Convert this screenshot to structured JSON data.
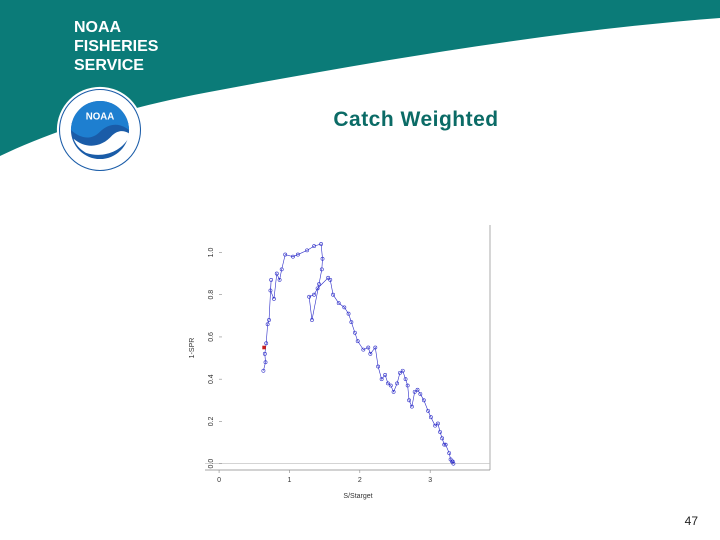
{
  "header": {
    "org_lines": [
      "NOAA",
      "FISHERIES",
      "SERVICE"
    ],
    "logo_text": "NOAA",
    "logo_icon": "noaa-seal-icon",
    "colors": {
      "banner": "#0b7b78",
      "accent": "#0b6b66",
      "logo_blue": "#1a5ca8"
    }
  },
  "slide": {
    "title": "Catch Weighted",
    "number": "47"
  },
  "chart_data": {
    "type": "line",
    "title": "",
    "xlabel": "S/Starget",
    "ylabel": "1-SPR",
    "xlim": [
      -0.2,
      3.85
    ],
    "ylim": [
      -0.03,
      1.13
    ],
    "xticks": [
      0,
      1,
      2,
      3
    ],
    "yticks": [
      0.0,
      0.2,
      0.4,
      0.6,
      0.8,
      1.0
    ],
    "xtick_labels": [
      "0",
      "1",
      "2",
      "3"
    ],
    "ytick_labels": [
      "0.0",
      "0.2",
      "0.4",
      "0.6",
      "0.8",
      "1.0"
    ],
    "grid": false,
    "line_color": "#2c2cc8",
    "highlight_color": "#c81e1e",
    "reference_line_y": 0.0,
    "series": [
      {
        "values_x": [
          0.63,
          0.66,
          0.65,
          0.67,
          0.69,
          0.71,
          0.74,
          0.73,
          0.78,
          0.82,
          0.86,
          0.89,
          0.94,
          1.05,
          1.12,
          1.25,
          1.35,
          1.45,
          1.47,
          1.46,
          1.42,
          1.32,
          1.28,
          1.35,
          1.4,
          1.55,
          1.58,
          1.62,
          1.7,
          1.78,
          1.84,
          1.88,
          1.93,
          1.97,
          2.05,
          2.12,
          2.15,
          2.22,
          2.26,
          2.31,
          2.36,
          2.4,
          2.44,
          2.48,
          2.53,
          2.57,
          2.61,
          2.65,
          2.68,
          2.7,
          2.74,
          2.78,
          2.82,
          2.86,
          2.91,
          2.97,
          3.01,
          3.07,
          3.11,
          3.14,
          3.17,
          3.2,
          3.22,
          3.27,
          3.29,
          3.31,
          3.32,
          3.33
        ],
        "values_y": [
          0.44,
          0.48,
          0.52,
          0.57,
          0.66,
          0.68,
          0.87,
          0.82,
          0.78,
          0.9,
          0.87,
          0.92,
          0.99,
          0.98,
          0.99,
          1.01,
          1.03,
          1.04,
          0.97,
          0.92,
          0.85,
          0.68,
          0.79,
          0.8,
          0.83,
          0.88,
          0.87,
          0.8,
          0.76,
          0.74,
          0.71,
          0.67,
          0.62,
          0.58,
          0.54,
          0.55,
          0.52,
          0.55,
          0.46,
          0.4,
          0.42,
          0.38,
          0.37,
          0.34,
          0.38,
          0.43,
          0.44,
          0.4,
          0.37,
          0.3,
          0.27,
          0.34,
          0.35,
          0.33,
          0.3,
          0.25,
          0.22,
          0.18,
          0.19,
          0.15,
          0.12,
          0.09,
          0.09,
          0.05,
          0.02,
          0.01,
          0.01,
          0.0
        ]
      },
      {
        "values_x": [
          0.64
        ],
        "values_y": [
          0.55
        ]
      }
    ]
  }
}
